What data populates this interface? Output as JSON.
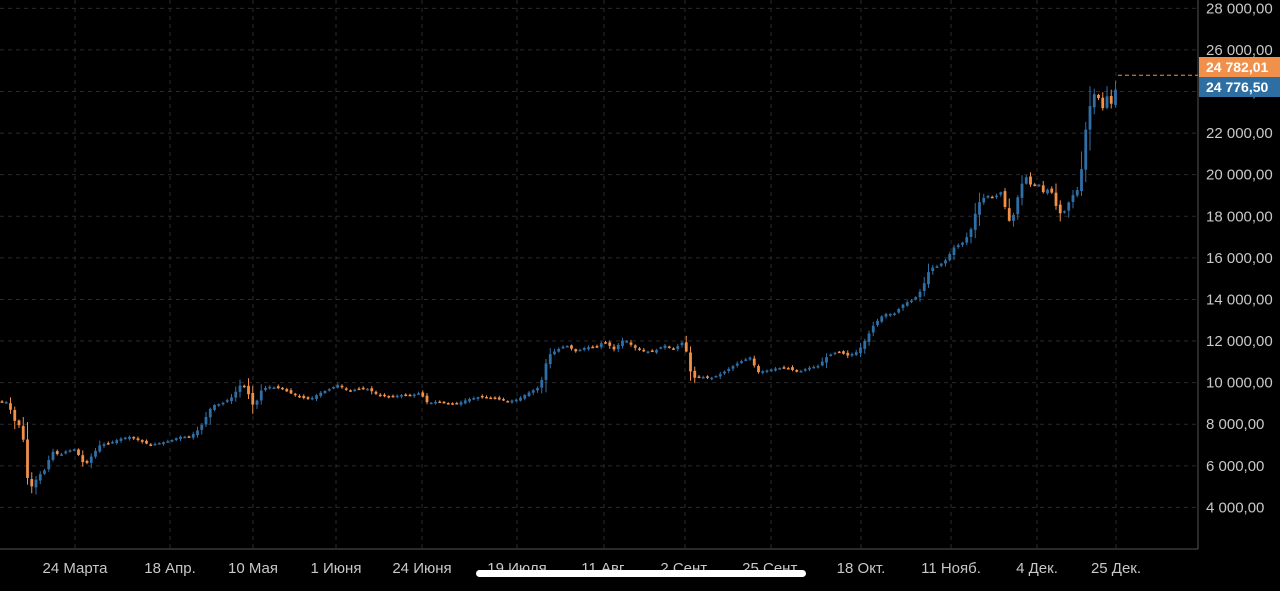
{
  "chart_data": {
    "type": "candlestick",
    "x_labels": [
      "24 Марта",
      "18 Апр.",
      "10 Мая",
      "1 Июня",
      "24 Июня",
      "19 Июля",
      "11 Авг.",
      "2 Сент.",
      "25 Сент.",
      "18 Окт.",
      "11 Нояб.",
      "4 Дек.",
      "25 Дек."
    ],
    "y_ticks": [
      "4 000,00",
      "6 000,00",
      "8 000,00",
      "10 000,00",
      "12 000,00",
      "14 000,00",
      "16 000,00",
      "18 000,00",
      "20 000,00",
      "22 000,00",
      "24 000,00",
      "26 000,00",
      "28 000,00"
    ],
    "y_tick_values": [
      4000,
      6000,
      8000,
      10000,
      12000,
      14000,
      16000,
      18000,
      20000,
      22000,
      24000,
      26000,
      28000
    ],
    "ylim": [
      2000,
      28400
    ],
    "grid": true,
    "ask_price": "24 782,01",
    "bid_price": "24 776,50",
    "ask_value": 24782.01,
    "bid_value": 24776.5,
    "up_color": "#2f6fa6",
    "down_color": "#f0904a",
    "ask_color": "#f0904a",
    "bid_color": "#2e6fa3",
    "close_path": [
      [
        0,
        9100
      ],
      [
        8,
        9050
      ],
      [
        14,
        8200
      ],
      [
        22,
        7800
      ],
      [
        28,
        5200
      ],
      [
        32,
        5000
      ],
      [
        38,
        5500
      ],
      [
        45,
        5800
      ],
      [
        52,
        6700
      ],
      [
        60,
        6500
      ],
      [
        66,
        6700
      ],
      [
        75,
        6800
      ],
      [
        85,
        6000
      ],
      [
        92,
        6500
      ],
      [
        100,
        7000
      ],
      [
        110,
        7100
      ],
      [
        120,
        7300
      ],
      [
        130,
        7400
      ],
      [
        140,
        7200
      ],
      [
        150,
        7000
      ],
      [
        160,
        7100
      ],
      [
        170,
        7200
      ],
      [
        180,
        7400
      ],
      [
        190,
        7400
      ],
      [
        200,
        7800
      ],
      [
        212,
        8900
      ],
      [
        222,
        9000
      ],
      [
        232,
        9300
      ],
      [
        242,
        10000
      ],
      [
        248,
        9500
      ],
      [
        254,
        8800
      ],
      [
        262,
        9700
      ],
      [
        270,
        9800
      ],
      [
        282,
        9700
      ],
      [
        290,
        9500
      ],
      [
        300,
        9300
      ],
      [
        310,
        9200
      ],
      [
        320,
        9500
      ],
      [
        330,
        9700
      ],
      [
        338,
        9900
      ],
      [
        348,
        9600
      ],
      [
        358,
        9700
      ],
      [
        368,
        9700
      ],
      [
        378,
        9400
      ],
      [
        390,
        9300
      ],
      [
        400,
        9400
      ],
      [
        412,
        9400
      ],
      [
        420,
        9500
      ],
      [
        428,
        9000
      ],
      [
        438,
        9100
      ],
      [
        448,
        9000
      ],
      [
        458,
        9000
      ],
      [
        468,
        9200
      ],
      [
        478,
        9300
      ],
      [
        488,
        9300
      ],
      [
        498,
        9200
      ],
      [
        508,
        9100
      ],
      [
        518,
        9200
      ],
      [
        528,
        9500
      ],
      [
        540,
        9800
      ],
      [
        548,
        11300
      ],
      [
        558,
        11600
      ],
      [
        566,
        11800
      ],
      [
        576,
        11500
      ],
      [
        586,
        11700
      ],
      [
        596,
        11700
      ],
      [
        604,
        12000
      ],
      [
        614,
        11600
      ],
      [
        624,
        12100
      ],
      [
        634,
        11700
      ],
      [
        644,
        11500
      ],
      [
        654,
        11500
      ],
      [
        664,
        11800
      ],
      [
        674,
        11600
      ],
      [
        684,
        12000
      ],
      [
        692,
        10200
      ],
      [
        700,
        10300
      ],
      [
        710,
        10200
      ],
      [
        720,
        10400
      ],
      [
        730,
        10700
      ],
      [
        740,
        11000
      ],
      [
        750,
        11200
      ],
      [
        758,
        10500
      ],
      [
        768,
        10600
      ],
      [
        778,
        10700
      ],
      [
        788,
        10700
      ],
      [
        798,
        10500
      ],
      [
        808,
        10700
      ],
      [
        818,
        10800
      ],
      [
        828,
        11300
      ],
      [
        838,
        11500
      ],
      [
        848,
        11300
      ],
      [
        858,
        11500
      ],
      [
        866,
        12100
      ],
      [
        874,
        12800
      ],
      [
        884,
        13300
      ],
      [
        894,
        13300
      ],
      [
        904,
        13800
      ],
      [
        914,
        14000
      ],
      [
        922,
        14500
      ],
      [
        930,
        15500
      ],
      [
        938,
        15600
      ],
      [
        946,
        15900
      ],
      [
        954,
        16500
      ],
      [
        962,
        16700
      ],
      [
        970,
        17200
      ],
      [
        978,
        18600
      ],
      [
        986,
        19000
      ],
      [
        994,
        18900
      ],
      [
        1002,
        19200
      ],
      [
        1008,
        17700
      ],
      [
        1014,
        18100
      ],
      [
        1020,
        19400
      ],
      [
        1026,
        19900
      ],
      [
        1032,
        19400
      ],
      [
        1038,
        19600
      ],
      [
        1044,
        19100
      ],
      [
        1050,
        19400
      ],
      [
        1056,
        18500
      ],
      [
        1062,
        18000
      ],
      [
        1068,
        18600
      ],
      [
        1074,
        19100
      ],
      [
        1080,
        19400
      ],
      [
        1084,
        21700
      ],
      [
        1090,
        23300
      ],
      [
        1096,
        24100
      ],
      [
        1102,
        23100
      ],
      [
        1108,
        23900
      ],
      [
        1112,
        23300
      ],
      [
        1116,
        24200
      ],
      [
        1119,
        24780
      ]
    ]
  }
}
